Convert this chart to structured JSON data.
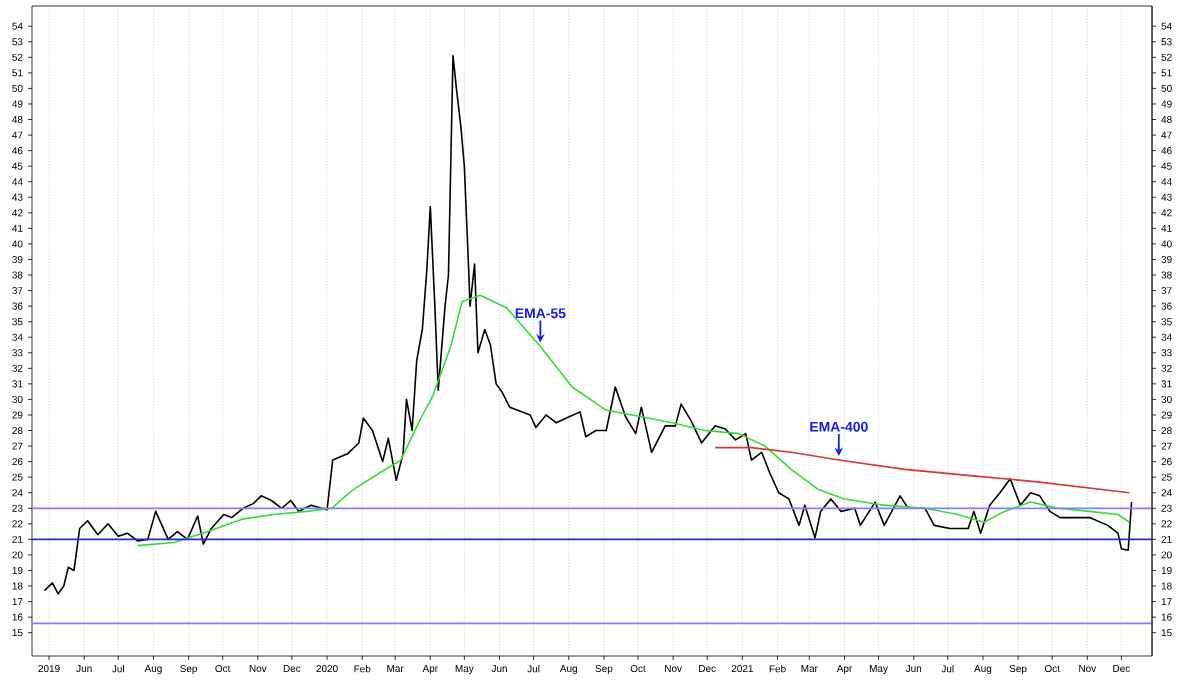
{
  "chart_data": {
    "type": "line",
    "xlim": [
      "2019-04-16",
      "2021-12-28"
    ],
    "xticks": [
      {
        "value": "2019-05-01",
        "label": "2019"
      },
      {
        "value": "2019-06-01",
        "label": "Jun"
      },
      {
        "value": "2019-07-01",
        "label": "Jul"
      },
      {
        "value": "2019-08-01",
        "label": "Aug"
      },
      {
        "value": "2019-09-01",
        "label": "Sep"
      },
      {
        "value": "2019-10-01",
        "label": "Oct"
      },
      {
        "value": "2019-11-01",
        "label": "Nov"
      },
      {
        "value": "2019-12-01",
        "label": "Dec"
      },
      {
        "value": "2020-01-01",
        "label": "2020"
      },
      {
        "value": "2020-02-01",
        "label": "Feb"
      },
      {
        "value": "2020-03-01",
        "label": "Mar"
      },
      {
        "value": "2020-04-01",
        "label": "Apr"
      },
      {
        "value": "2020-05-01",
        "label": "May"
      },
      {
        "value": "2020-06-01",
        "label": "Jun"
      },
      {
        "value": "2020-07-01",
        "label": "Jul"
      },
      {
        "value": "2020-08-01",
        "label": "Aug"
      },
      {
        "value": "2020-09-01",
        "label": "Sep"
      },
      {
        "value": "2020-10-01",
        "label": "Oct"
      },
      {
        "value": "2020-11-01",
        "label": "Nov"
      },
      {
        "value": "2020-12-01",
        "label": "Dec"
      },
      {
        "value": "2021-01-01",
        "label": "2021"
      },
      {
        "value": "2021-02-01",
        "label": "Feb"
      },
      {
        "value": "2021-03-01",
        "label": "Mar"
      },
      {
        "value": "2021-04-01",
        "label": "Apr"
      },
      {
        "value": "2021-05-01",
        "label": "May"
      },
      {
        "value": "2021-06-01",
        "label": "Jun"
      },
      {
        "value": "2021-07-01",
        "label": "Jul"
      },
      {
        "value": "2021-08-01",
        "label": "Aug"
      },
      {
        "value": "2021-09-01",
        "label": "Sep"
      },
      {
        "value": "2021-10-01",
        "label": "Oct"
      },
      {
        "value": "2021-11-01",
        "label": "Nov"
      },
      {
        "value": "2021-12-01",
        "label": "Dec"
      }
    ],
    "ylim": [
      13.5,
      55.3
    ],
    "yticks": [
      15,
      16,
      17,
      18,
      19,
      20,
      21,
      22,
      23,
      24,
      25,
      26,
      27,
      28,
      29,
      30,
      31,
      32,
      33,
      34,
      35,
      36,
      37,
      38,
      39,
      40,
      41,
      42,
      43,
      44,
      45,
      46,
      47,
      48,
      49,
      50,
      51,
      52,
      53,
      54
    ],
    "y2lim": [
      13.5,
      55.3
    ],
    "y2ticks": [
      15,
      16,
      17,
      18,
      19,
      20,
      21,
      22,
      23,
      24,
      25,
      26,
      27,
      28,
      29,
      30,
      31,
      32,
      33,
      34,
      35,
      36,
      37,
      38,
      39,
      40,
      41,
      42,
      43,
      44,
      45,
      46,
      47,
      48,
      49,
      50,
      51,
      52,
      53,
      54
    ],
    "grid": "x",
    "marker": "none",
    "line_style": "solid",
    "series": [
      {
        "color": "#000000",
        "x": [
          "2019-04-27",
          "2019-05-04",
          "2019-05-09",
          "2019-05-14",
          "2019-05-18",
          "2019-05-23",
          "2019-05-28",
          "2019-06-04",
          "2019-06-13",
          "2019-06-22",
          "2019-07-01",
          "2019-07-09",
          "2019-07-18",
          "2019-07-27",
          "2019-08-03",
          "2019-08-14",
          "2019-08-22",
          "2019-08-31",
          "2019-09-09",
          "2019-09-14",
          "2019-09-21",
          "2019-10-02",
          "2019-10-09",
          "2019-10-19",
          "2019-10-28",
          "2019-11-04",
          "2019-11-13",
          "2019-11-22",
          "2019-11-30",
          "2019-12-07",
          "2019-12-18",
          "2020-01-01",
          "2020-01-06",
          "2020-01-19",
          "2020-01-29",
          "2020-02-02",
          "2020-02-10",
          "2020-02-19",
          "2020-02-24",
          "2020-03-02",
          "2020-03-08",
          "2020-03-11",
          "2020-03-16",
          "2020-03-20",
          "2020-03-25",
          "2020-03-29",
          "2020-04-01",
          "2020-04-05",
          "2020-04-08",
          "2020-04-14",
          "2020-04-17",
          "2020-04-21",
          "2020-04-24",
          "2020-04-28",
          "2020-05-01",
          "2020-05-05",
          "2020-05-06",
          "2020-05-10",
          "2020-05-13",
          "2020-05-19",
          "2020-05-24",
          "2020-05-29",
          "2020-06-03",
          "2020-06-10",
          "2020-06-17",
          "2020-06-28",
          "2020-07-03",
          "2020-07-12",
          "2020-07-21",
          "2020-07-30",
          "2020-08-11",
          "2020-08-16",
          "2020-08-25",
          "2020-09-03",
          "2020-09-11",
          "2020-09-20",
          "2020-09-29",
          "2020-10-04",
          "2020-10-13",
          "2020-10-25",
          "2020-11-03",
          "2020-11-08",
          "2020-11-17",
          "2020-11-26",
          "2020-12-08",
          "2020-12-17",
          "2020-12-26",
          "2021-01-04",
          "2021-01-09",
          "2021-01-18",
          "2021-01-25",
          "2021-02-02",
          "2021-02-11",
          "2021-02-20",
          "2021-02-25",
          "2021-03-06",
          "2021-03-11",
          "2021-03-20",
          "2021-03-29",
          "2021-04-10",
          "2021-04-15",
          "2021-04-28",
          "2021-05-06",
          "2021-05-20",
          "2021-05-27",
          "2021-06-11",
          "2021-06-19",
          "2021-07-03",
          "2021-07-19",
          "2021-07-24",
          "2021-07-30",
          "2021-08-07",
          "2021-08-16",
          "2021-08-25",
          "2021-09-03",
          "2021-09-12",
          "2021-09-20",
          "2021-09-29",
          "2021-10-08",
          "2021-10-24",
          "2021-11-03",
          "2021-11-19",
          "2021-11-28",
          "2021-12-01",
          "2021-12-07",
          "2021-12-10"
        ],
        "values": [
          17.7,
          18.2,
          17.5,
          18.0,
          19.2,
          19.0,
          21.7,
          22.2,
          21.3,
          22.0,
          21.2,
          21.4,
          20.9,
          21.0,
          22.8,
          21.0,
          21.5,
          21.0,
          22.5,
          20.7,
          21.7,
          22.6,
          22.4,
          23.0,
          23.3,
          23.8,
          23.5,
          23.0,
          23.5,
          22.8,
          23.2,
          22.9,
          26.1,
          26.5,
          27.2,
          28.8,
          28.0,
          26.0,
          27.5,
          24.8,
          26.5,
          30.0,
          28.0,
          32.5,
          34.5,
          38.4,
          42.4,
          36.0,
          30.6,
          36.0,
          38.0,
          52.1,
          50.0,
          47.5,
          45.0,
          38.0,
          36.0,
          38.7,
          33.0,
          34.5,
          33.5,
          31.0,
          30.5,
          29.5,
          29.3,
          29.0,
          28.2,
          29.0,
          28.5,
          28.8,
          29.2,
          27.6,
          28.0,
          28.0,
          30.8,
          28.9,
          27.8,
          29.5,
          26.6,
          28.3,
          28.3,
          29.7,
          28.6,
          27.2,
          28.3,
          28.1,
          27.4,
          27.8,
          26.1,
          26.6,
          25.3,
          24.0,
          23.6,
          21.9,
          23.2,
          21.1,
          22.8,
          23.6,
          22.8,
          23.0,
          21.9,
          23.4,
          21.9,
          23.8,
          23.0,
          23.0,
          21.9,
          21.7,
          21.7,
          22.8,
          21.4,
          23.2,
          24.0,
          24.9,
          23.2,
          24.0,
          23.8,
          22.8,
          22.4,
          22.4,
          22.4,
          21.9,
          21.4,
          20.4,
          20.3,
          23.4
        ]
      },
      {
        "color": "#33dd33",
        "x": [
          "2019-07-18",
          "2019-08-19",
          "2019-09-18",
          "2019-10-18",
          "2019-11-15",
          "2019-12-14",
          "2020-01-05",
          "2020-01-24",
          "2020-02-17",
          "2020-03-06",
          "2020-03-23",
          "2020-04-03",
          "2020-04-19",
          "2020-04-29",
          "2020-05-15",
          "2020-06-07",
          "2020-07-07",
          "2020-08-04",
          "2020-09-03",
          "2020-10-03",
          "2020-10-31",
          "2020-11-29",
          "2020-12-29",
          "2021-01-21",
          "2021-02-13",
          "2021-03-09",
          "2021-04-01",
          "2021-05-06",
          "2021-06-11",
          "2021-07-10",
          "2021-08-02",
          "2021-08-20",
          "2021-09-12",
          "2021-10-06",
          "2021-11-03",
          "2021-11-28",
          "2021-12-08"
        ],
        "values": [
          20.6,
          20.8,
          21.5,
          22.3,
          22.6,
          22.8,
          23.0,
          24.2,
          25.3,
          26.1,
          28.7,
          30.2,
          33.4,
          36.3,
          36.7,
          35.9,
          33.4,
          30.8,
          29.3,
          28.9,
          28.5,
          28.0,
          27.8,
          27.0,
          25.5,
          24.2,
          23.6,
          23.2,
          23.0,
          22.6,
          22.1,
          22.8,
          23.4,
          23.0,
          22.8,
          22.6,
          22.1
        ]
      },
      {
        "color": "#dd3333",
        "x": [
          "2020-12-08",
          "2021-01-09",
          "2021-02-13",
          "2021-03-27",
          "2021-05-24",
          "2021-07-21",
          "2021-09-18",
          "2021-12-08"
        ],
        "values": [
          26.9,
          26.9,
          26.6,
          26.1,
          25.5,
          25.1,
          24.7,
          24.0
        ]
      }
    ],
    "ref_lines": [
      {
        "axis": "y",
        "value": 23,
        "color": "#8080ff"
      },
      {
        "axis": "y",
        "value": 21,
        "color": "#2a2acc"
      },
      {
        "axis": "y",
        "value": 15.6,
        "color": "#8080ff"
      }
    ],
    "annotations": [
      {
        "text": "EMA-55",
        "x": "2020-07-07",
        "y": 33.4
      },
      {
        "text": "EMA-400",
        "x": "2021-03-27",
        "y": 26.1
      }
    ]
  }
}
